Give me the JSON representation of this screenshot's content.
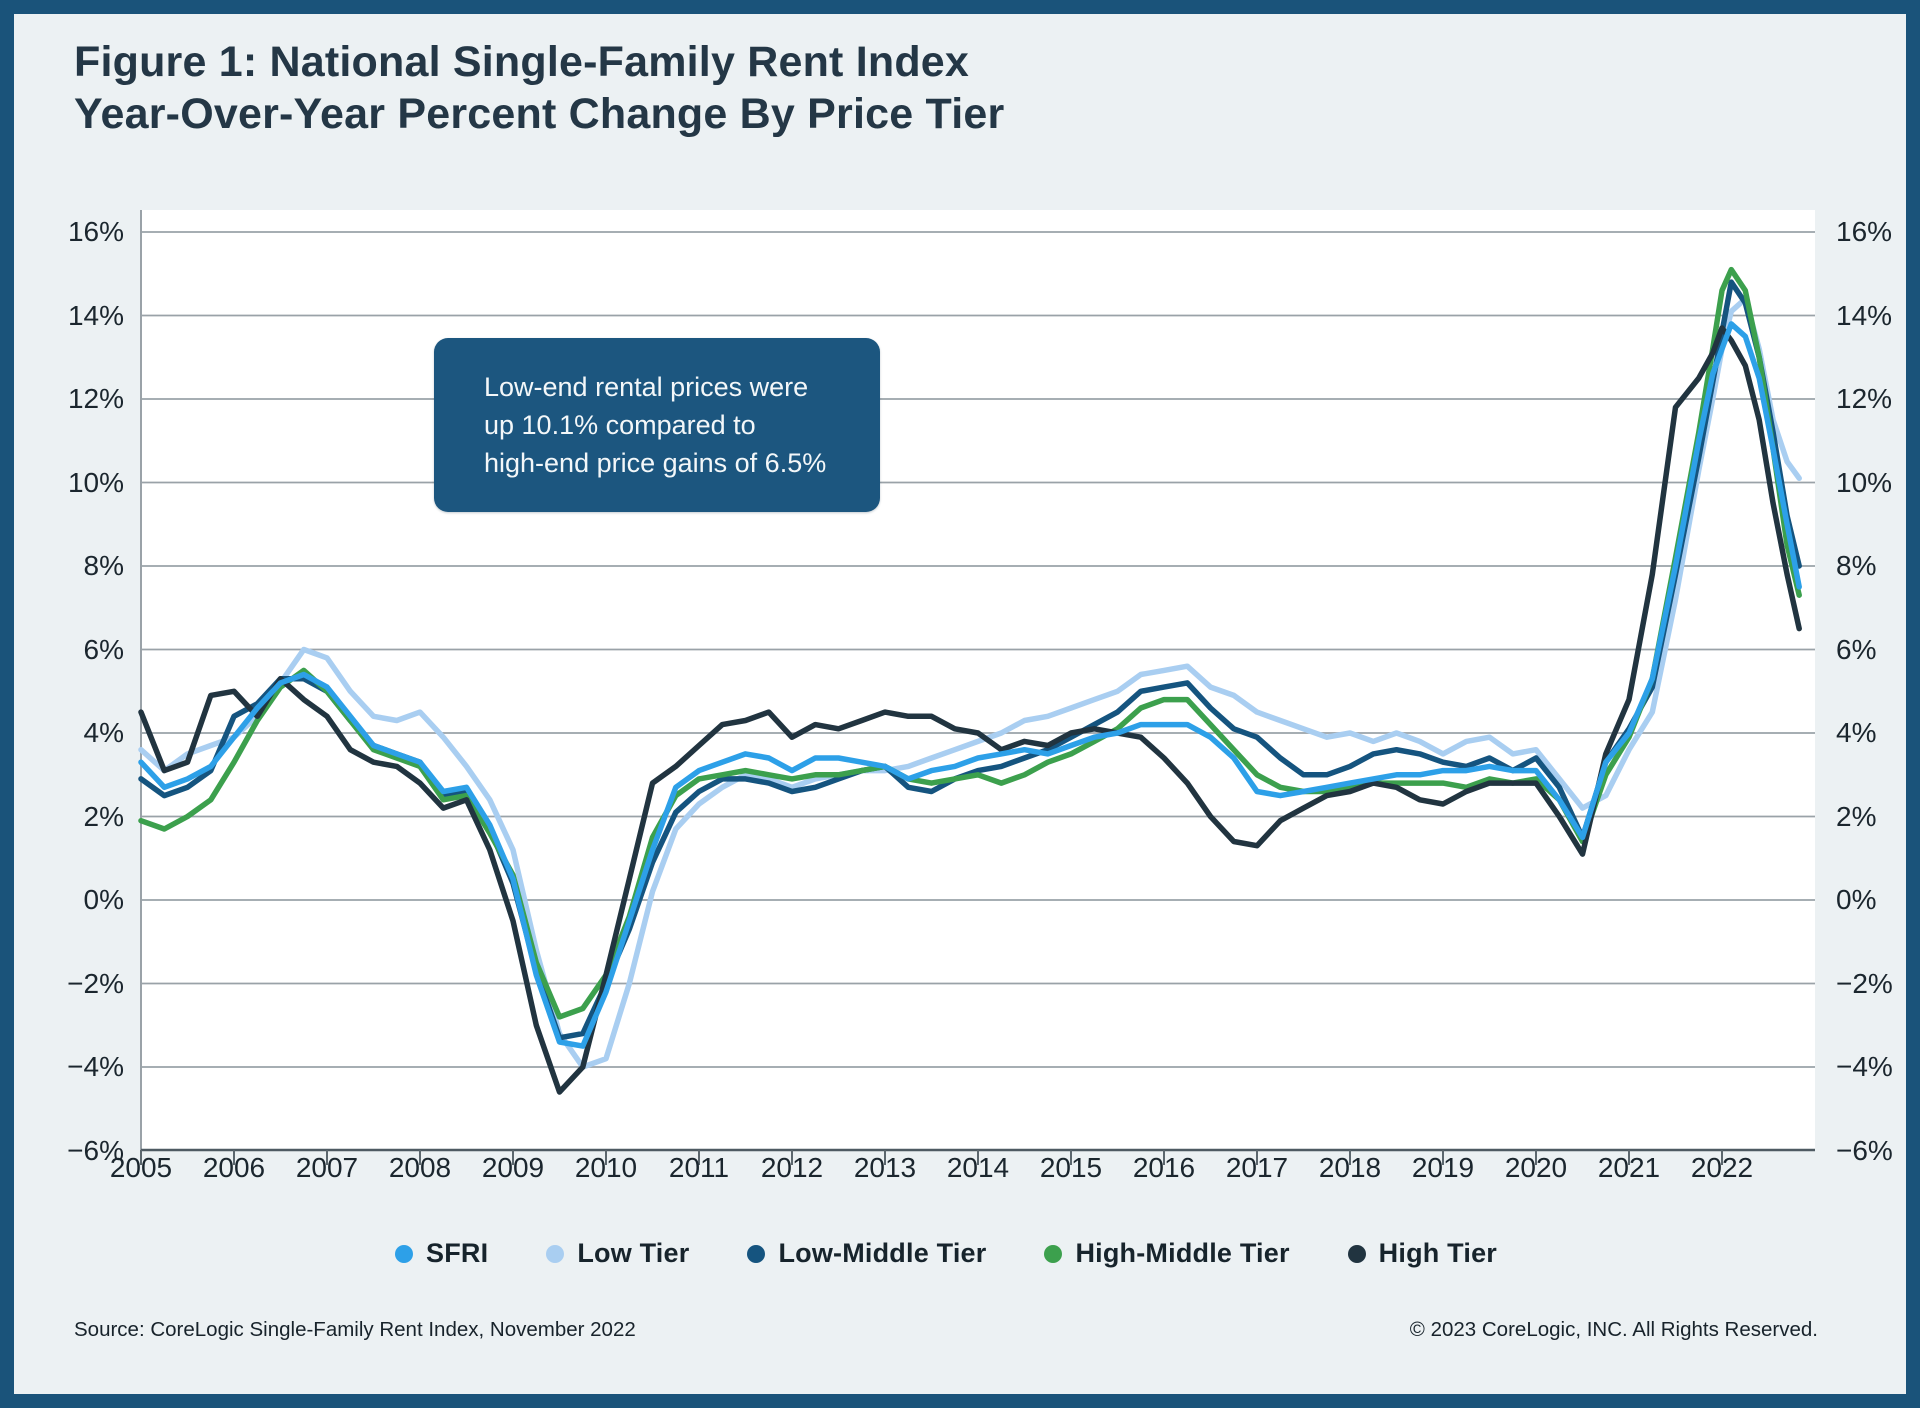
{
  "title": {
    "line1": "Figure 1: National Single-Family Rent Index",
    "line2": "Year-Over-Year Percent Change By Price Tier"
  },
  "annotation": {
    "lines": [
      "Low-end rental prices were",
      "up 10.1% compared to",
      "high-end price gains of 6.5%"
    ]
  },
  "legend": [
    {
      "key": "sfri",
      "label": "SFRI",
      "color": "#2da0e8"
    },
    {
      "key": "low",
      "label": "Low Tier",
      "color": "#a9cef1"
    },
    {
      "key": "lowmid",
      "label": "Low-Middle Tier",
      "color": "#15547f"
    },
    {
      "key": "highmid",
      "label": "High-Middle Tier",
      "color": "#3ca04d"
    },
    {
      "key": "high",
      "label": "High Tier",
      "color": "#213440"
    }
  ],
  "source": {
    "left": "Source: CoreLogic Single-Family Rent Index, November 2022",
    "right": "© 2023 CoreLogic, INC. All Rights Reserved."
  },
  "colors": {
    "frame": "#1a537a",
    "page_bg": "#ecf1f3",
    "plot_bg": "#ffffff",
    "grid": "#9aa2a8",
    "axis": "#4e5a62",
    "tick": "#5c676e",
    "label": "#1b262e",
    "annotation_bg": "#1c567f",
    "title": "#243746"
  },
  "chart_data": {
    "type": "line",
    "title": "National Single-Family Rent Index Year-Over-Year Percent Change By Price Tier",
    "xlabel": "",
    "ylabel": "",
    "grid": "horizontal",
    "legend_position": "bottom",
    "xlim": [
      2005,
      2023.1
    ],
    "ylim": [
      -6,
      16
    ],
    "y_tick_values": [
      16,
      14,
      12,
      10,
      8,
      6,
      4,
      2,
      0,
      -2,
      -4,
      -6
    ],
    "y_tick_labels": [
      "16%",
      "14%",
      "12%",
      "10%",
      "8%",
      "6%",
      "4%",
      "2%",
      "0%",
      "−2%",
      "−4%",
      "−6%"
    ],
    "x_tick_values": [
      2005,
      2006,
      2007,
      2008,
      2009,
      2010,
      2011,
      2012,
      2013,
      2014,
      2015,
      2016,
      2017,
      2018,
      2019,
      2020,
      2021,
      2022
    ],
    "x_tick_labels": [
      "2005",
      "2006",
      "2007",
      "2008",
      "2009",
      "2010",
      "2011",
      "2012",
      "2013",
      "2014",
      "2015",
      "2016",
      "2017",
      "2018",
      "2019",
      "2020",
      "2021",
      "2022"
    ],
    "x": [
      2005.0,
      2005.25,
      2005.5,
      2005.75,
      2006.0,
      2006.25,
      2006.5,
      2006.75,
      2007.0,
      2007.25,
      2007.5,
      2007.75,
      2008.0,
      2008.25,
      2008.5,
      2008.75,
      2009.0,
      2009.25,
      2009.5,
      2009.75,
      2010.0,
      2010.25,
      2010.5,
      2010.75,
      2011.0,
      2011.25,
      2011.5,
      2011.75,
      2012.0,
      2012.25,
      2012.5,
      2012.75,
      2013.0,
      2013.25,
      2013.5,
      2013.75,
      2014.0,
      2014.25,
      2014.5,
      2014.75,
      2015.0,
      2015.25,
      2015.5,
      2015.75,
      2016.0,
      2016.25,
      2016.5,
      2016.75,
      2017.0,
      2017.25,
      2017.5,
      2017.75,
      2018.0,
      2018.25,
      2018.5,
      2018.75,
      2019.0,
      2019.25,
      2019.5,
      2019.75,
      2020.0,
      2020.25,
      2020.5,
      2020.75,
      2021.0,
      2021.25,
      2021.5,
      2021.75,
      2021.9,
      2022.0,
      2022.1,
      2022.25,
      2022.4,
      2022.55,
      2022.7,
      2022.83
    ],
    "series": [
      {
        "key": "low",
        "name": "Low Tier",
        "color": "#a9cef1",
        "values": [
          3.6,
          3.1,
          3.5,
          3.7,
          3.9,
          4.4,
          5.2,
          6.0,
          5.8,
          5.0,
          4.4,
          4.3,
          4.5,
          3.9,
          3.2,
          2.4,
          1.2,
          -1.2,
          -3.2,
          -4.0,
          -3.8,
          -2.0,
          0.2,
          1.7,
          2.3,
          2.7,
          3.0,
          2.9,
          2.7,
          2.9,
          3.0,
          3.1,
          3.1,
          3.2,
          3.4,
          3.6,
          3.8,
          4.0,
          4.3,
          4.4,
          4.6,
          4.8,
          5.0,
          5.4,
          5.5,
          5.6,
          5.1,
          4.9,
          4.5,
          4.3,
          4.1,
          3.9,
          4.0,
          3.8,
          4.0,
          3.8,
          3.5,
          3.8,
          3.9,
          3.5,
          3.6,
          2.9,
          2.2,
          2.5,
          3.6,
          4.5,
          7.2,
          10.3,
          12.0,
          13.2,
          14.1,
          14.4,
          13.2,
          11.5,
          10.5,
          10.1
        ]
      },
      {
        "key": "lowmid",
        "name": "Low-Middle Tier",
        "color": "#15547f",
        "values": [
          2.9,
          2.5,
          2.7,
          3.1,
          4.4,
          4.7,
          5.3,
          5.3,
          5.0,
          4.3,
          3.7,
          3.5,
          3.3,
          2.5,
          2.6,
          1.7,
          0.4,
          -1.7,
          -3.3,
          -3.2,
          -2.0,
          -0.7,
          0.9,
          2.1,
          2.6,
          2.9,
          2.9,
          2.8,
          2.6,
          2.7,
          2.9,
          3.1,
          3.2,
          2.7,
          2.6,
          2.9,
          3.1,
          3.2,
          3.4,
          3.6,
          3.9,
          4.2,
          4.5,
          5.0,
          5.1,
          5.2,
          4.6,
          4.1,
          3.9,
          3.4,
          3.0,
          3.0,
          3.2,
          3.5,
          3.6,
          3.5,
          3.3,
          3.2,
          3.4,
          3.1,
          3.4,
          2.7,
          1.5,
          3.3,
          4.1,
          5.1,
          7.8,
          10.6,
          12.4,
          13.6,
          14.8,
          14.3,
          13.0,
          11.2,
          9.2,
          8.0
        ]
      },
      {
        "key": "highmid",
        "name": "High-Middle Tier",
        "color": "#3ca04d",
        "values": [
          1.9,
          1.7,
          2.0,
          2.4,
          3.3,
          4.3,
          5.1,
          5.5,
          5.0,
          4.3,
          3.6,
          3.4,
          3.2,
          2.4,
          2.5,
          1.6,
          0.6,
          -1.5,
          -2.8,
          -2.6,
          -1.8,
          -0.4,
          1.5,
          2.5,
          2.9,
          3.0,
          3.1,
          3.0,
          2.9,
          3.0,
          3.0,
          3.1,
          3.2,
          2.9,
          2.8,
          2.9,
          3.0,
          2.8,
          3.0,
          3.3,
          3.5,
          3.8,
          4.1,
          4.6,
          4.8,
          4.8,
          4.2,
          3.6,
          3.0,
          2.7,
          2.6,
          2.6,
          2.7,
          2.8,
          2.8,
          2.8,
          2.8,
          2.7,
          2.9,
          2.8,
          2.9,
          2.4,
          1.4,
          3.0,
          3.9,
          5.3,
          8.2,
          11.2,
          13.2,
          14.6,
          15.1,
          14.6,
          13.0,
          10.8,
          8.5,
          7.3
        ]
      },
      {
        "key": "high",
        "name": "High Tier",
        "color": "#213440",
        "values": [
          4.5,
          3.1,
          3.3,
          4.9,
          5.0,
          4.4,
          5.3,
          4.8,
          4.4,
          3.6,
          3.3,
          3.2,
          2.8,
          2.2,
          2.4,
          1.2,
          -0.5,
          -3.0,
          -4.6,
          -4.0,
          -1.8,
          0.5,
          2.8,
          3.2,
          3.7,
          4.2,
          4.3,
          4.5,
          3.9,
          4.2,
          4.1,
          4.3,
          4.5,
          4.4,
          4.4,
          4.1,
          4.0,
          3.6,
          3.8,
          3.7,
          4.0,
          4.1,
          4.0,
          3.9,
          3.4,
          2.8,
          2.0,
          1.4,
          1.3,
          1.9,
          2.2,
          2.5,
          2.6,
          2.8,
          2.7,
          2.4,
          2.3,
          2.6,
          2.8,
          2.8,
          2.8,
          2.0,
          1.1,
          3.5,
          4.8,
          7.8,
          11.8,
          12.5,
          13.1,
          13.7,
          13.4,
          12.8,
          11.5,
          9.5,
          7.8,
          6.5
        ]
      },
      {
        "key": "sfri",
        "name": "SFRI",
        "color": "#2da0e8",
        "values": [
          3.3,
          2.7,
          2.9,
          3.2,
          3.9,
          4.6,
          5.2,
          5.4,
          5.1,
          4.4,
          3.7,
          3.5,
          3.3,
          2.6,
          2.7,
          1.8,
          0.5,
          -1.8,
          -3.4,
          -3.5,
          -2.2,
          -0.5,
          1.2,
          2.7,
          3.1,
          3.3,
          3.5,
          3.4,
          3.1,
          3.4,
          3.4,
          3.3,
          3.2,
          2.9,
          3.1,
          3.2,
          3.4,
          3.5,
          3.6,
          3.5,
          3.7,
          3.9,
          4.0,
          4.2,
          4.2,
          4.2,
          3.9,
          3.4,
          2.6,
          2.5,
          2.6,
          2.7,
          2.8,
          2.9,
          3.0,
          3.0,
          3.1,
          3.1,
          3.2,
          3.1,
          3.1,
          2.4,
          1.5,
          3.3,
          4.0,
          5.3,
          8.0,
          11.0,
          12.6,
          13.2,
          13.8,
          13.5,
          12.5,
          10.8,
          9.0,
          7.5
        ]
      }
    ]
  }
}
